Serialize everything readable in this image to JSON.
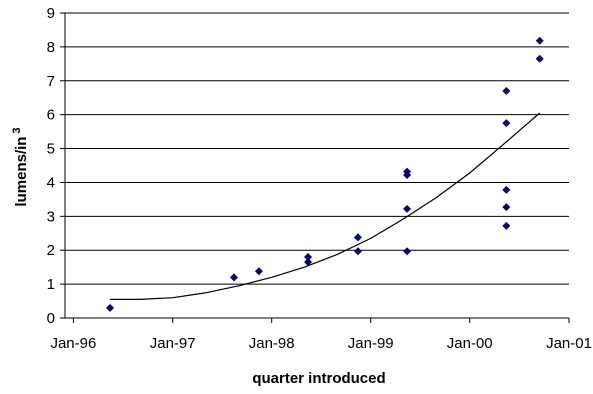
{
  "chart_data": {
    "type": "scatter",
    "title": "",
    "xlabel": "quarter introduced",
    "ylabel": "lumens/in",
    "ylabel_superscript": "3",
    "x_tick_labels": [
      "Jan-96",
      "Jan-97",
      "Jan-98",
      "Jan-99",
      "Jan-00",
      "Jan-01"
    ],
    "x_ticks": [
      "1996-01-01",
      "1997-01-01",
      "1998-01-01",
      "1999-01-01",
      "2000-01-01",
      "2001-01-01"
    ],
    "y_tick_labels": [
      "0",
      "1",
      "2",
      "3",
      "4",
      "5",
      "6",
      "7",
      "8",
      "9"
    ],
    "xlim": [
      "1995-12-01",
      "2001-01-01"
    ],
    "ylim": [
      0,
      9
    ],
    "grid": "horizontal",
    "legend": "none",
    "series": [
      {
        "marker": "diamond",
        "color": "#000080",
        "points": [
          {
            "x": "1996-05-15",
            "y": 0.3
          },
          {
            "x": "1997-08-15",
            "y": 1.2
          },
          {
            "x": "1997-11-15",
            "y": 1.38
          },
          {
            "x": "1998-05-15",
            "y": 1.65
          },
          {
            "x": "1998-05-15",
            "y": 1.8
          },
          {
            "x": "1998-11-15",
            "y": 1.97
          },
          {
            "x": "1998-11-15",
            "y": 2.38
          },
          {
            "x": "1999-05-15",
            "y": 1.97
          },
          {
            "x": "1999-05-15",
            "y": 3.22
          },
          {
            "x": "1999-05-15",
            "y": 4.22
          },
          {
            "x": "1999-05-15",
            "y": 4.32
          },
          {
            "x": "2000-05-15",
            "y": 2.72
          },
          {
            "x": "2000-05-15",
            "y": 3.27
          },
          {
            "x": "2000-05-15",
            "y": 3.78
          },
          {
            "x": "2000-05-15",
            "y": 5.75
          },
          {
            "x": "2000-05-15",
            "y": 6.7
          },
          {
            "x": "2000-09-15",
            "y": 7.65
          },
          {
            "x": "2000-09-15",
            "y": 8.18
          }
        ]
      }
    ],
    "trendline": {
      "type": "curve",
      "color": "#000000",
      "points": [
        {
          "x": "1996-05-15",
          "y": 0.55
        },
        {
          "x": "1996-09-01",
          "y": 0.55
        },
        {
          "x": "1997-01-01",
          "y": 0.6
        },
        {
          "x": "1997-05-01",
          "y": 0.74
        },
        {
          "x": "1997-09-01",
          "y": 0.95
        },
        {
          "x": "1998-01-01",
          "y": 1.2
        },
        {
          "x": "1998-05-01",
          "y": 1.5
        },
        {
          "x": "1998-09-01",
          "y": 1.88
        },
        {
          "x": "1999-01-01",
          "y": 2.35
        },
        {
          "x": "1999-05-01",
          "y": 2.92
        },
        {
          "x": "1999-09-01",
          "y": 3.56
        },
        {
          "x": "2000-01-01",
          "y": 4.28
        },
        {
          "x": "2000-05-01",
          "y": 5.1
        },
        {
          "x": "2000-09-15",
          "y": 6.05
        }
      ]
    }
  }
}
